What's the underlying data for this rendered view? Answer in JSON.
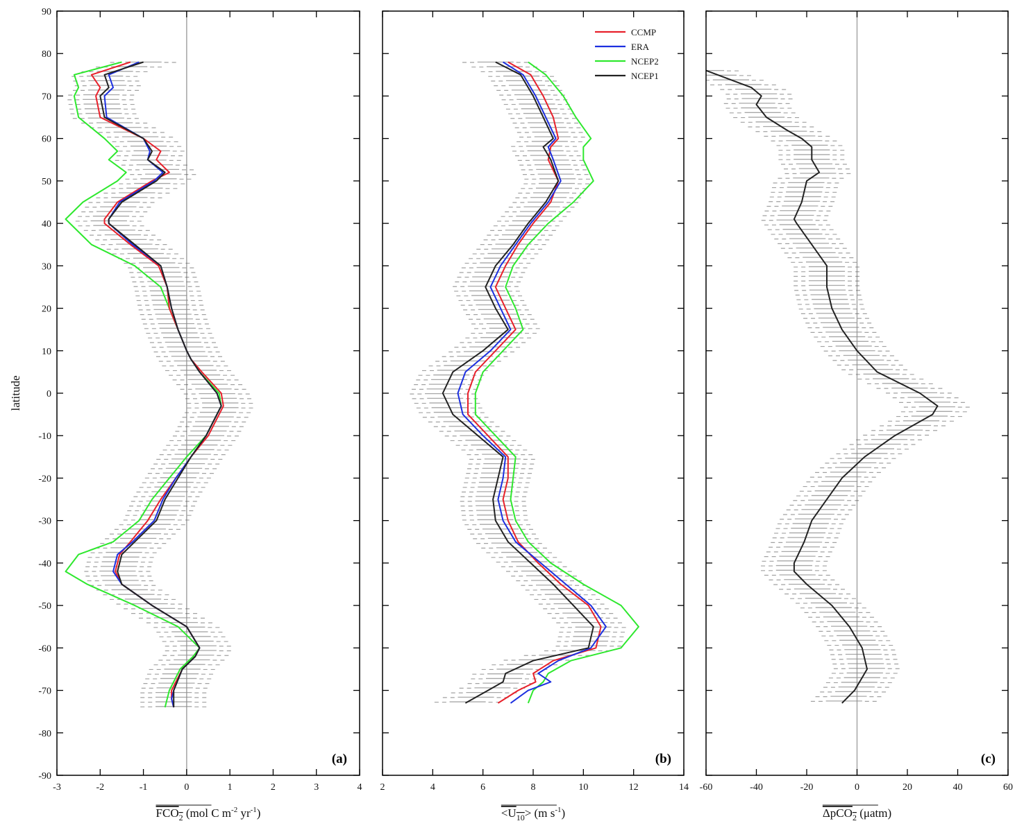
{
  "ylabel": "latitude",
  "colors": {
    "CCMP": "#e8202a",
    "ERA": "#1c2fe0",
    "NCEP2": "#2ee82e",
    "NCEP1": "#222222",
    "zero_line": "#aaaaaa",
    "frame": "#000000",
    "band": "#8a8a8a",
    "whisker": "#555555"
  },
  "chart_data": [
    {
      "type": "line",
      "panel_tag": "(a)",
      "xlabel": "FCO2 (mol C m-2 yr-1)",
      "xlabel_parts": {
        "main": "FCO",
        "sub": "2",
        "rest1": " (mol C m",
        "sup1": "-2",
        "rest2": " yr",
        "sup2": "-1",
        "rest3": ")"
      },
      "xlim": [
        -3,
        4
      ],
      "ylim": [
        -90,
        90
      ],
      "xticks": [
        -3,
        -2,
        -1,
        0,
        1,
        2,
        3,
        4
      ],
      "yticks": [
        -90,
        -80,
        -70,
        -60,
        -50,
        -40,
        -30,
        -20,
        -10,
        0,
        10,
        20,
        30,
        40,
        50,
        60,
        70,
        80,
        90
      ],
      "zero_line": 0,
      "lat": [
        78,
        75,
        72,
        70,
        65,
        60,
        57,
        55,
        52,
        50,
        45,
        41,
        40,
        35,
        30,
        25,
        20,
        15,
        10,
        8,
        5,
        0,
        -3,
        -5,
        -10,
        -15,
        -20,
        -25,
        -30,
        -35,
        -38,
        -42,
        -45,
        -50,
        -55,
        -60,
        -62,
        -65,
        -70,
        -72,
        -74
      ],
      "series": [
        {
          "name": "NCEP1",
          "values": [
            -1.0,
            -1.9,
            -1.8,
            -2.0,
            -1.9,
            -1.0,
            -0.8,
            -0.9,
            -0.5,
            -0.7,
            -1.5,
            -1.8,
            -1.8,
            -1.2,
            -0.6,
            -0.45,
            -0.35,
            -0.2,
            0.0,
            0.1,
            0.3,
            0.7,
            0.8,
            0.7,
            0.45,
            0.1,
            -0.2,
            -0.5,
            -0.7,
            -1.2,
            -1.5,
            -1.6,
            -1.5,
            -0.8,
            0.0,
            0.3,
            0.2,
            -0.1,
            -0.3,
            -0.3,
            -0.3
          ]
        },
        {
          "name": "ERA",
          "values": [
            -1.1,
            -1.8,
            -1.7,
            -1.9,
            -1.85,
            -1.0,
            -0.85,
            -0.9,
            -0.55,
            -0.75,
            -1.55,
            -1.8,
            -1.8,
            -1.25,
            -0.6,
            -0.45,
            -0.35,
            -0.2,
            0.0,
            0.1,
            0.3,
            0.7,
            0.8,
            0.7,
            0.45,
            0.1,
            -0.25,
            -0.55,
            -0.75,
            -1.25,
            -1.6,
            -1.7,
            -1.5,
            -0.8,
            0.0,
            0.3,
            0.2,
            -0.1,
            -0.3,
            -0.35,
            -0.3
          ]
        },
        {
          "name": "CCMP",
          "values": [
            -1.3,
            -2.2,
            -2.0,
            -2.1,
            -2.0,
            -1.0,
            -0.6,
            -0.7,
            -0.4,
            -0.8,
            -1.6,
            -1.9,
            -1.9,
            -1.3,
            -0.65,
            -0.45,
            -0.4,
            -0.2,
            0.0,
            0.1,
            0.35,
            0.8,
            0.85,
            0.75,
            0.5,
            0.1,
            -0.25,
            -0.6,
            -0.9,
            -1.3,
            -1.55,
            -1.65,
            -1.5,
            -0.8,
            0.0,
            0.3,
            0.2,
            -0.1,
            -0.35,
            -0.35,
            -0.3
          ]
        },
        {
          "name": "NCEP2",
          "values": [
            -1.5,
            -2.6,
            -2.5,
            -2.6,
            -2.5,
            -1.9,
            -1.6,
            -1.8,
            -1.4,
            -1.6,
            -2.4,
            -2.8,
            -2.7,
            -2.2,
            -1.2,
            -0.6,
            -0.4,
            -0.2,
            0.0,
            0.1,
            0.3,
            0.75,
            0.8,
            0.7,
            0.45,
            0.0,
            -0.4,
            -0.8,
            -1.1,
            -1.7,
            -2.5,
            -2.8,
            -2.3,
            -1.2,
            -0.2,
            0.3,
            0.15,
            -0.15,
            -0.4,
            -0.45,
            -0.5
          ]
        }
      ]
    },
    {
      "type": "line",
      "panel_tag": "(b)",
      "xlabel": "<U10> (m s-1)",
      "xlabel_parts": {
        "main": "<U",
        "sub": "10",
        "rest1": "> (m s",
        "sup1": "-1",
        "rest2": ")",
        "sup2": "",
        "rest3": ""
      },
      "xlim": [
        2,
        14
      ],
      "ylim": [
        -90,
        90
      ],
      "xticks": [
        2,
        4,
        6,
        8,
        10,
        12,
        14
      ],
      "yticks": [
        -90,
        -80,
        -70,
        -60,
        -50,
        -40,
        -30,
        -20,
        -10,
        0,
        10,
        20,
        30,
        40,
        50,
        60,
        70,
        80,
        90
      ],
      "zero_line": null,
      "legend": {
        "location": "top-right",
        "entries": [
          "CCMP",
          "ERA",
          "NCEP2",
          "NCEP1"
        ]
      },
      "lat": [
        78,
        75,
        70,
        65,
        60,
        58,
        55,
        50,
        45,
        40,
        35,
        30,
        25,
        20,
        15,
        10,
        5,
        0,
        -5,
        -10,
        -15,
        -20,
        -25,
        -30,
        -35,
        -40,
        -45,
        -50,
        -55,
        -60,
        -63,
        -66,
        -68,
        -70,
        -73
      ],
      "series": [
        {
          "name": "NCEP1",
          "values": [
            6.5,
            7.5,
            8.0,
            8.4,
            8.8,
            8.4,
            8.7,
            9.0,
            8.5,
            7.8,
            7.2,
            6.5,
            6.1,
            6.5,
            7.0,
            6.0,
            4.8,
            4.4,
            4.8,
            5.8,
            6.8,
            6.6,
            6.4,
            6.5,
            7.0,
            7.9,
            8.8,
            9.6,
            10.4,
            10.2,
            8.0,
            6.9,
            6.8,
            6.2,
            5.3
          ]
        },
        {
          "name": "ERA",
          "values": [
            6.8,
            7.6,
            8.1,
            8.5,
            8.9,
            8.6,
            8.8,
            9.1,
            8.6,
            7.9,
            7.3,
            6.7,
            6.3,
            6.7,
            7.1,
            6.3,
            5.3,
            5.0,
            5.2,
            6.0,
            6.9,
            6.8,
            6.6,
            6.8,
            7.3,
            8.3,
            9.3,
            10.3,
            10.9,
            10.3,
            9.0,
            8.2,
            8.7,
            7.8,
            7.1
          ]
        },
        {
          "name": "CCMP",
          "values": [
            7.0,
            7.9,
            8.4,
            8.8,
            9.0,
            8.7,
            8.6,
            9.0,
            8.7,
            8.0,
            7.4,
            6.9,
            6.5,
            6.9,
            7.3,
            6.5,
            5.7,
            5.4,
            5.4,
            6.2,
            7.0,
            7.0,
            6.8,
            7.0,
            7.4,
            8.2,
            9.1,
            10.2,
            10.7,
            10.5,
            8.8,
            8.0,
            8.1,
            7.4,
            6.6
          ]
        },
        {
          "name": "NCEP2",
          "values": [
            7.8,
            8.5,
            9.2,
            9.7,
            10.3,
            10.0,
            10.0,
            10.4,
            9.6,
            8.6,
            7.8,
            7.2,
            6.9,
            7.3,
            7.6,
            6.8,
            6.0,
            5.7,
            5.7,
            6.5,
            7.3,
            7.2,
            7.1,
            7.3,
            7.8,
            8.7,
            10.0,
            11.5,
            12.2,
            11.5,
            9.5,
            8.6,
            8.4,
            8.0,
            7.8
          ]
        }
      ]
    },
    {
      "type": "line",
      "panel_tag": "(c)",
      "xlabel": "ΔpCO2 (μatm)",
      "xlabel_parts": {
        "main": "ΔpCO",
        "sub": "2",
        "rest1": " (μatm)",
        "sup1": "",
        "rest2": "",
        "sup2": "",
        "rest3": ""
      },
      "xlim": [
        -60,
        60
      ],
      "ylim": [
        -90,
        90
      ],
      "xticks": [
        -60,
        -40,
        -20,
        0,
        20,
        40,
        60
      ],
      "yticks": [
        -90,
        -80,
        -70,
        -60,
        -50,
        -40,
        -30,
        -20,
        -10,
        0,
        10,
        20,
        30,
        40,
        50,
        60,
        70,
        80,
        90
      ],
      "zero_line": 0,
      "lat": [
        76,
        72,
        70,
        68,
        65,
        62,
        60,
        58,
        55,
        52,
        50,
        45,
        41,
        40,
        35,
        30,
        25,
        20,
        15,
        10,
        5,
        0,
        -3,
        -5,
        -10,
        -15,
        -20,
        -25,
        -30,
        -35,
        -40,
        -42,
        -45,
        -50,
        -55,
        -60,
        -65,
        -67,
        -70,
        -73
      ],
      "series": [
        {
          "name": "NCEP1",
          "values": [
            -60,
            -42,
            -38,
            -40,
            -36,
            -28,
            -22,
            -18,
            -18,
            -15,
            -20,
            -22,
            -25,
            -24,
            -18,
            -12,
            -12,
            -10,
            -6,
            0,
            8,
            25,
            32,
            30,
            15,
            3,
            -6,
            -12,
            -18,
            -21,
            -25,
            -25,
            -20,
            -10,
            -3,
            2,
            4,
            2,
            -1,
            -6
          ]
        }
      ]
    }
  ]
}
